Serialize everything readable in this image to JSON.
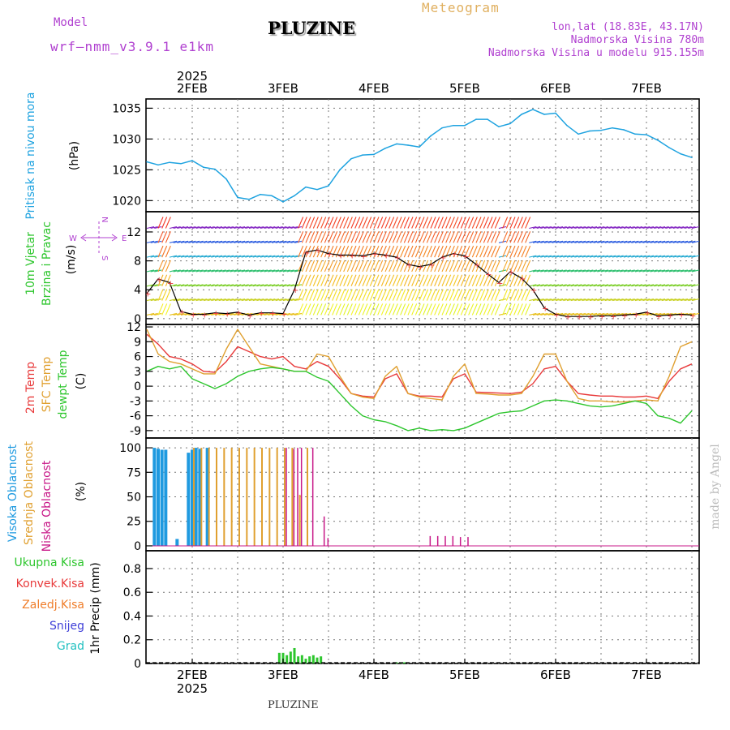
{
  "header": {
    "model_caption": "Model",
    "model_name": "wrf—nmm_v3.9.1  e1km",
    "station": "PLUZINE",
    "product": "Meteogram",
    "coords": "lon,lat (18.83E, 43.17N)",
    "elevation": "Nadmorska Visina 780m",
    "model_elevation": "Nadmorska Visina u modelu 915.155m",
    "footer_station": "PLUZINE",
    "credit": "made by Angel"
  },
  "colors": {
    "pressure": "#1fa3e0",
    "temp2m": "#e8393a",
    "sfc_temp": "#e0a030",
    "dewpoint": "#2ec62e",
    "high_cloud": "#1f9ae0",
    "mid_cloud": "#e0a030",
    "low_cloud": "#c81888",
    "total_precip": "#2ec62e",
    "conv_precip": "#e8393a",
    "frz_precip": "#ef7d2a",
    "snow": "#4040d8",
    "hail": "#20c0c0",
    "purple_label": "#b040d0",
    "wind_speed_line": "#000000"
  },
  "time_axis": {
    "year": "2025",
    "dates": [
      "2FEB",
      "3FEB",
      "4FEB",
      "5FEB",
      "6FEB",
      "7FEB"
    ],
    "start_hours_before_2feb": 12,
    "end_hours_after_7feb": 12
  },
  "panels": {
    "pressure": {
      "side_label": "Pritisak na nivou mora",
      "unit": "(hPa)",
      "ticks": [
        "1020",
        "1025",
        "1030",
        "1035"
      ]
    },
    "wind": {
      "side_label_1": "10m Vjetar",
      "side_label_2": "Brzina i Pravac",
      "unit": "(m/s)",
      "ticks": [
        "0",
        "4",
        "8",
        "12"
      ],
      "compass": {
        "w": "W",
        "e": "E",
        "n": "N",
        "s": "S"
      }
    },
    "temperature": {
      "label_2m": "2m Temp",
      "label_sfc": "SFC Temp",
      "label_dew": "dewpt Temp",
      "unit": "(C)",
      "ticks": [
        "12",
        "9",
        "6",
        "3",
        "0",
        "-3",
        "-6",
        "-9"
      ]
    },
    "clouds": {
      "label_high": "Visoka Oblacnost",
      "label_mid": "Srednja Oblacnost",
      "label_low": "Niska Oblacnost",
      "unit": "(%)",
      "ticks": [
        "0",
        "25",
        "50",
        "75",
        "100"
      ]
    },
    "precip": {
      "label_total": "Ukupna Kisa",
      "label_conv": "Konvek.Kisa",
      "label_frz": "Zaledj.Kisa",
      "label_snow": "Snijeg",
      "label_hail": "Grad",
      "unit": "1hr Precip (mm)",
      "ticks": [
        "0",
        "0.2",
        "0.4",
        "0.6",
        "0.8"
      ]
    }
  },
  "chart_data": [
    {
      "type": "line",
      "name": "pressure",
      "ylabel": "Pritisak na nivou mora (hPa)",
      "ylim": [
        1018.2,
        1036.5
      ],
      "x_hours_from_2feb": [
        -12,
        -9,
        -6,
        -3,
        0,
        3,
        6,
        9,
        12,
        15,
        18,
        21,
        24,
        27,
        30,
        33,
        36,
        39,
        42,
        45,
        48,
        51,
        54,
        57,
        60,
        63,
        66,
        69,
        72,
        75,
        78,
        81,
        84,
        87,
        90,
        93,
        96,
        99,
        102,
        105,
        108,
        111,
        114,
        117,
        120,
        123,
        126,
        129,
        132
      ],
      "values": [
        1026.3,
        1025.8,
        1026.2,
        1026.0,
        1026.5,
        1025.4,
        1025.1,
        1023.5,
        1020.5,
        1020.2,
        1021.0,
        1020.8,
        1019.8,
        1020.8,
        1022.2,
        1021.8,
        1022.4,
        1025.0,
        1026.8,
        1027.4,
        1027.5,
        1028.5,
        1029.2,
        1029.0,
        1028.7,
        1030.5,
        1031.8,
        1032.2,
        1032.2,
        1033.2,
        1033.2,
        1032.0,
        1032.5,
        1034.0,
        1034.8,
        1034.0,
        1034.2,
        1032.2,
        1030.8,
        1031.3,
        1031.4,
        1031.8,
        1031.5,
        1030.8,
        1030.7,
        1029.8,
        1028.6,
        1027.6,
        1027.0
      ]
    },
    {
      "type": "line",
      "name": "wind_speed",
      "ylabel": "10m Vjetar (m/s)",
      "ylim": [
        -0.8,
        14.8
      ],
      "x_hours_from_2feb": [
        -12,
        -9,
        -6,
        -3,
        0,
        3,
        6,
        9,
        12,
        15,
        18,
        21,
        24,
        27,
        30,
        33,
        36,
        39,
        42,
        45,
        48,
        51,
        54,
        57,
        60,
        63,
        66,
        69,
        72,
        75,
        78,
        81,
        84,
        87,
        90,
        93,
        96,
        99,
        102,
        105,
        108,
        111,
        114,
        117,
        120,
        123,
        126,
        129,
        132
      ],
      "values": [
        3.5,
        5.5,
        5.0,
        1.0,
        0.6,
        0.6,
        0.8,
        0.7,
        0.9,
        0.5,
        0.8,
        0.8,
        0.7,
        4.0,
        9.2,
        9.5,
        9.0,
        8.8,
        8.8,
        8.7,
        9.0,
        8.8,
        8.5,
        7.5,
        7.2,
        7.5,
        8.5,
        9.0,
        8.7,
        7.5,
        6.2,
        5.0,
        6.5,
        5.6,
        4.0,
        1.5,
        0.6,
        0.3,
        0.3,
        0.3,
        0.4,
        0.4,
        0.5,
        0.6,
        0.9,
        0.4,
        0.5,
        0.6,
        0.5
      ]
    },
    {
      "type": "line",
      "name": "temperature",
      "ylabel": "(C)",
      "ylim": [
        -10.5,
        12.5
      ],
      "x_hours_from_2feb": [
        -12,
        -9,
        -6,
        -3,
        0,
        3,
        6,
        9,
        12,
        15,
        18,
        21,
        24,
        27,
        30,
        33,
        36,
        39,
        42,
        45,
        48,
        51,
        54,
        57,
        60,
        63,
        66,
        69,
        72,
        75,
        78,
        81,
        84,
        87,
        90,
        93,
        96,
        99,
        102,
        105,
        108,
        111,
        114,
        117,
        120,
        123,
        126,
        129,
        132
      ],
      "series": [
        {
          "name": "2m Temp",
          "values": [
            10.5,
            8.5,
            6.0,
            5.5,
            4.5,
            3.0,
            2.8,
            5.0,
            8.0,
            7.0,
            6.0,
            5.5,
            6.0,
            4.0,
            3.5,
            5.0,
            4.0,
            1.5,
            -1.5,
            -2.0,
            -2.2,
            1.5,
            2.5,
            -1.5,
            -2.0,
            -2.0,
            -2.2,
            1.5,
            2.5,
            -1.2,
            -1.3,
            -1.4,
            -1.5,
            -1.2,
            0.5,
            3.5,
            4.0,
            1.0,
            -1.5,
            -1.8,
            -2.0,
            -2.0,
            -2.2,
            -2.2,
            -2.0,
            -2.5,
            1.0,
            3.5,
            4.5
          ]
        },
        {
          "name": "SFC Temp",
          "values": [
            11.5,
            6.5,
            5.0,
            4.5,
            3.5,
            2.5,
            2.5,
            7.5,
            11.5,
            8.0,
            4.5,
            4.0,
            3.5,
            3.0,
            3.0,
            6.5,
            6.0,
            2.0,
            -1.5,
            -2.2,
            -2.5,
            2.0,
            4.0,
            -1.5,
            -2.2,
            -2.5,
            -2.8,
            2.0,
            4.5,
            -1.5,
            -1.6,
            -1.8,
            -1.8,
            -1.5,
            2.0,
            6.5,
            6.5,
            1.0,
            -2.5,
            -3.0,
            -3.0,
            -3.2,
            -3.2,
            -3.0,
            -2.8,
            -3.0,
            2.0,
            8.0,
            9.0
          ]
        },
        {
          "name": "dewpt Temp",
          "values": [
            3.0,
            4.0,
            3.5,
            4.0,
            1.5,
            0.5,
            -0.5,
            0.5,
            2.0,
            3.0,
            3.5,
            3.8,
            3.5,
            3.0,
            3.0,
            1.8,
            1.0,
            -1.5,
            -4.0,
            -6.0,
            -6.8,
            -7.2,
            -8.0,
            -9.0,
            -8.5,
            -9.0,
            -8.8,
            -9.0,
            -8.5,
            -7.5,
            -6.5,
            -5.5,
            -5.2,
            -5.0,
            -4.0,
            -3.0,
            -2.8,
            -3.0,
            -3.5,
            -4.0,
            -4.2,
            -4.0,
            -3.5,
            -3.0,
            -3.5,
            -6.0,
            -6.5,
            -7.5,
            -5.0
          ]
        }
      ]
    },
    {
      "type": "bar",
      "name": "cloud_cover",
      "ylabel": "(%)",
      "ylim": [
        -5,
        110
      ],
      "series": [
        {
          "name": "Visoka Oblacnost",
          "x_hours_from_2feb": [
            -10,
            -9,
            -8,
            -7,
            -4,
            -1,
            0,
            1,
            2,
            4
          ],
          "values": [
            100,
            99,
            98,
            98,
            7,
            95,
            98,
            100,
            99,
            100
          ]
        },
        {
          "name": "Srednja Oblacnost",
          "x_hours_from_2feb": [
            0,
            2,
            4,
            6,
            8,
            10,
            12,
            14,
            16,
            18,
            20,
            22,
            24,
            26,
            28,
            30
          ],
          "values": [
            100,
            100,
            100,
            100,
            100,
            100,
            100,
            100,
            100,
            100,
            100,
            100,
            100,
            100,
            52,
            100
          ]
        },
        {
          "name": "Niska Oblacnost",
          "x_hours_from_2feb": [
            24,
            26,
            27,
            28,
            31,
            34,
            35,
            62,
            64,
            66,
            68,
            70,
            72
          ],
          "values": [
            100,
            99,
            100,
            100,
            100,
            30,
            8,
            10,
            10,
            10,
            10,
            9,
            9
          ]
        }
      ]
    },
    {
      "type": "bar",
      "name": "precipitation",
      "ylabel": "1hr Precip (mm)",
      "ylim": [
        0,
        0.95
      ],
      "series": [
        {
          "name": "Ukupna Kisa",
          "x_hours_from_2feb": [
            23,
            24,
            25,
            26,
            27,
            28,
            29,
            30,
            31,
            32,
            33,
            34,
            54,
            55,
            56
          ],
          "values": [
            0.09,
            0.09,
            0.07,
            0.1,
            0.13,
            0.06,
            0.07,
            0.04,
            0.06,
            0.07,
            0.05,
            0.06,
            0.01,
            0.01,
            0.01
          ]
        }
      ]
    }
  ]
}
